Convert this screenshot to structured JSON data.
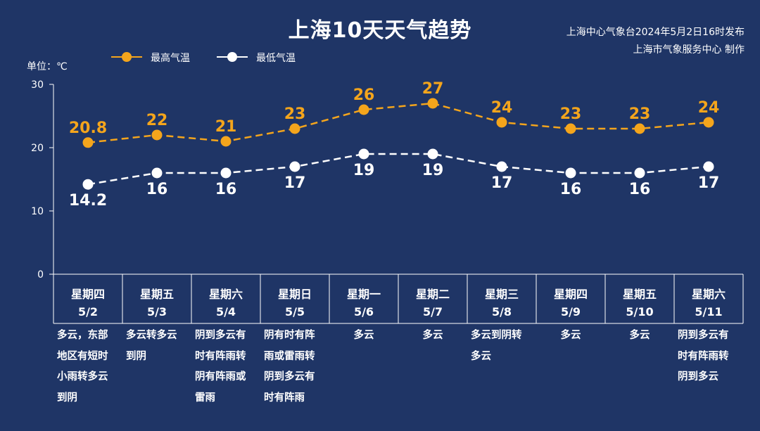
{
  "header": {
    "title": "上海10天天气趋势",
    "source_line1": "上海中心气象台2024年5月2日16时发布",
    "source_line2": "上海市气象服务中心 制作"
  },
  "unit_label": "单位：℃",
  "colors": {
    "background": "#1f3566",
    "high": "#f4a51c",
    "low": "#ffffff",
    "axis": "#ffffff"
  },
  "chart_data": {
    "type": "line",
    "title": "上海10天天气趋势",
    "ylabel": "单位：℃",
    "ylim": [
      0,
      30
    ],
    "yticks": [
      "0",
      "10",
      "20",
      "30"
    ],
    "grid": false,
    "legend": "top-left",
    "categories": [
      "5/2",
      "5/3",
      "5/4",
      "5/5",
      "5/6",
      "5/7",
      "5/8",
      "5/9",
      "5/10",
      "5/11"
    ],
    "series": [
      {
        "name": "最高气温",
        "values": [
          20.8,
          22,
          21,
          23,
          26,
          27,
          24,
          23,
          23,
          24
        ],
        "labels": [
          "20.8",
          "22",
          "21",
          "23",
          "26",
          "27",
          "24",
          "23",
          "23",
          "24"
        ],
        "label_position": "above",
        "style": "dashed"
      },
      {
        "name": "最低气温",
        "values": [
          14.2,
          16,
          16,
          17,
          19,
          19,
          17,
          16,
          16,
          17
        ],
        "labels": [
          "14.2",
          "16",
          "16",
          "17",
          "19",
          "19",
          "17",
          "16",
          "16",
          "17"
        ],
        "label_position": "below",
        "style": "dashed"
      }
    ]
  },
  "days": [
    {
      "weekday": "星期四",
      "date": "5/2",
      "weather": [
        "多云，东部",
        "地区有短时",
        "小雨转多云",
        "到阴"
      ],
      "align": "left"
    },
    {
      "weekday": "星期五",
      "date": "5/3",
      "weather": [
        "多云转多云",
        "到阴"
      ],
      "align": "left"
    },
    {
      "weekday": "星期六",
      "date": "5/4",
      "weather": [
        "阴到多云有",
        "时有阵雨转",
        "阴有阵雨或",
        "雷雨"
      ],
      "align": "left"
    },
    {
      "weekday": "星期日",
      "date": "5/5",
      "weather": [
        "阴有时有阵",
        "雨或雷雨转",
        "阴到多云有",
        "时有阵雨"
      ],
      "align": "left"
    },
    {
      "weekday": "星期一",
      "date": "5/6",
      "weather": [
        "多云"
      ],
      "align": "center"
    },
    {
      "weekday": "星期二",
      "date": "5/7",
      "weather": [
        "多云"
      ],
      "align": "center"
    },
    {
      "weekday": "星期三",
      "date": "5/8",
      "weather": [
        "多云到阴转",
        "多云"
      ],
      "align": "left"
    },
    {
      "weekday": "星期四",
      "date": "5/9",
      "weather": [
        "多云"
      ],
      "align": "center"
    },
    {
      "weekday": "星期五",
      "date": "5/10",
      "weather": [
        "多云"
      ],
      "align": "center"
    },
    {
      "weekday": "星期六",
      "date": "5/11",
      "weather": [
        "阴到多云有",
        "时有阵雨转",
        "阴到多云"
      ],
      "align": "left"
    }
  ]
}
